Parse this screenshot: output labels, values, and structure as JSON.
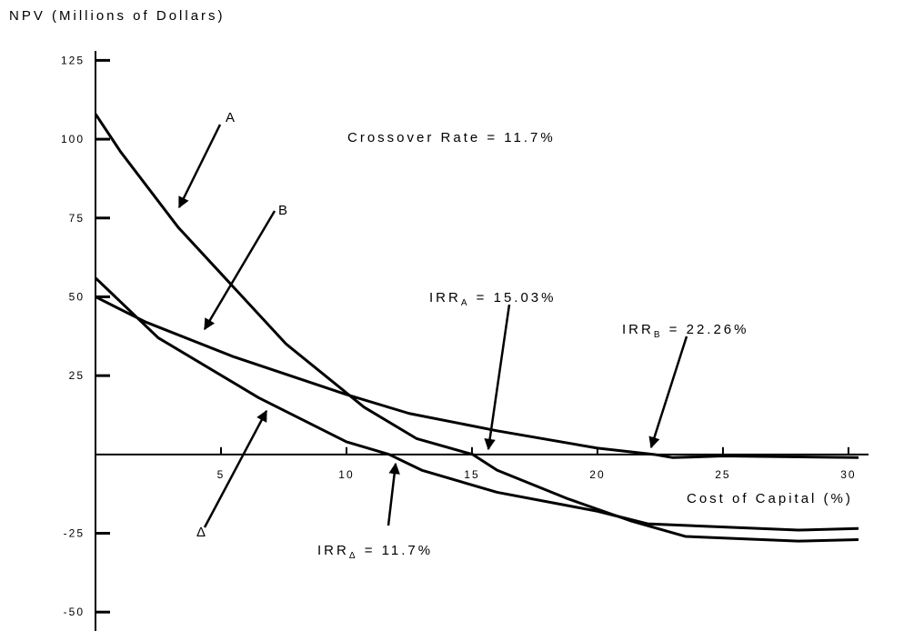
{
  "chart_data": {
    "type": "line",
    "y_axis_label": "NPV (Millions of Dollars)",
    "x_axis_label": "Cost of Capital (%)",
    "xlim": [
      0,
      30.8
    ],
    "ylim": [
      -56,
      128
    ],
    "xticks": [
      5,
      10,
      15,
      20,
      25,
      30
    ],
    "yticks": [
      125,
      100,
      75,
      50,
      25,
      -25,
      -50
    ],
    "series": [
      {
        "name": "A",
        "color": "#000000",
        "x": [
          0,
          1,
          3.3,
          7.6,
          10.7,
          12.8,
          15.03,
          16,
          18.8,
          21.3,
          23.5,
          28,
          30.4
        ],
        "values": [
          108,
          96,
          72,
          35,
          15,
          5,
          0,
          -5,
          -14,
          -21,
          -26,
          -27.5,
          -27
        ]
      },
      {
        "name": "B",
        "color": "#000000",
        "x": [
          0,
          2,
          5.5,
          10,
          12.5,
          16,
          20,
          22.26,
          23,
          25,
          30.4
        ],
        "values": [
          50,
          42,
          31,
          19,
          13,
          7.5,
          2,
          0,
          -1,
          -0.5,
          -1
        ]
      },
      {
        "name": "Δ",
        "color": "#000000",
        "x": [
          0,
          2.5,
          6.5,
          10,
          11.7,
          13,
          16,
          20,
          22,
          28,
          30.4
        ],
        "values": [
          56,
          37,
          18,
          4,
          0,
          -5,
          -12,
          -18,
          -22,
          -24,
          -23.5
        ]
      }
    ],
    "annotations": [
      {
        "text": "Crossover Rate = 11.7%"
      },
      {
        "text": "IRR",
        "sub": "A",
        "rest": " = 15.03%"
      },
      {
        "text": "IRR",
        "sub": "B",
        "rest": " = 22.26%"
      },
      {
        "text": "IRR",
        "sub": "Δ",
        "rest": " = 11.7%"
      }
    ]
  }
}
